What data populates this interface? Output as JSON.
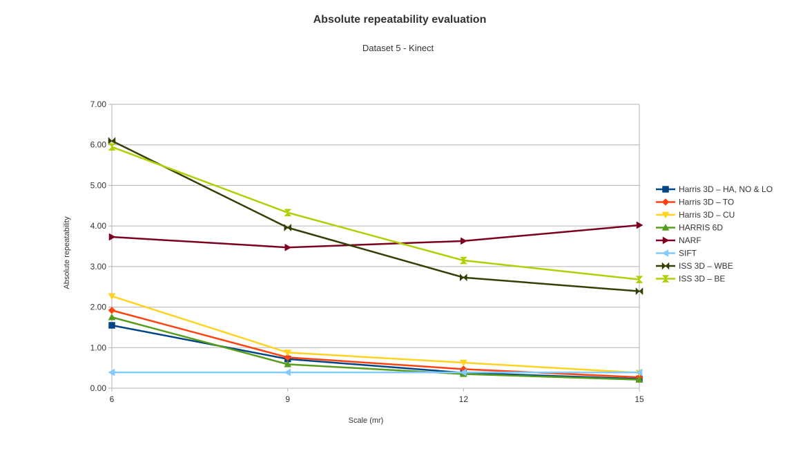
{
  "chart_data": {
    "type": "line",
    "title": "Absolute repeatability evaluation",
    "subtitle": "Dataset 5 - Kinect",
    "xlabel": "Scale (mr)",
    "ylabel": "Absolute repeatability",
    "x": [
      6,
      9,
      12,
      15
    ],
    "x_tick_labels": [
      "6",
      "9",
      "12",
      "15"
    ],
    "ylim": [
      0,
      7
    ],
    "y_ticks": [
      0,
      1,
      2,
      3,
      4,
      5,
      6,
      7
    ],
    "y_tick_labels": [
      "0.00",
      "1.00",
      "2.00",
      "3.00",
      "4.00",
      "5.00",
      "6.00",
      "7.00"
    ],
    "grid": "horizontal",
    "legend_position": "right",
    "series": [
      {
        "name": "Harris 3D – HA, NO & LO",
        "color": "#004586",
        "marker": "square",
        "values": [
          1.55,
          0.72,
          0.38,
          0.23
        ]
      },
      {
        "name": "Harris 3D – TO",
        "color": "#ff420e",
        "marker": "diamond",
        "values": [
          1.92,
          0.76,
          0.47,
          0.27
        ]
      },
      {
        "name": "Harris 3D – CU",
        "color": "#ffd320",
        "marker": "triangle-down",
        "values": [
          2.27,
          0.88,
          0.63,
          0.38
        ]
      },
      {
        "name": "HARRIS 6D",
        "color": "#579d1c",
        "marker": "triangle-up",
        "values": [
          1.75,
          0.59,
          0.35,
          0.21
        ]
      },
      {
        "name": "NARF",
        "color": "#7e0021",
        "marker": "triangle-right",
        "values": [
          3.73,
          3.47,
          3.63,
          4.02
        ]
      },
      {
        "name": "SIFT",
        "color": "#83caff",
        "marker": "triangle-left",
        "values": [
          0.39,
          0.39,
          0.39,
          0.39
        ]
      },
      {
        "name": "ISS 3D – WBE",
        "color": "#314004",
        "marker": "bowtie",
        "values": [
          6.1,
          3.96,
          2.73,
          2.39
        ]
      },
      {
        "name": "ISS 3D – BE",
        "color": "#aecf00",
        "marker": "hourglass",
        "values": [
          5.95,
          4.33,
          3.15,
          2.68
        ]
      }
    ]
  }
}
